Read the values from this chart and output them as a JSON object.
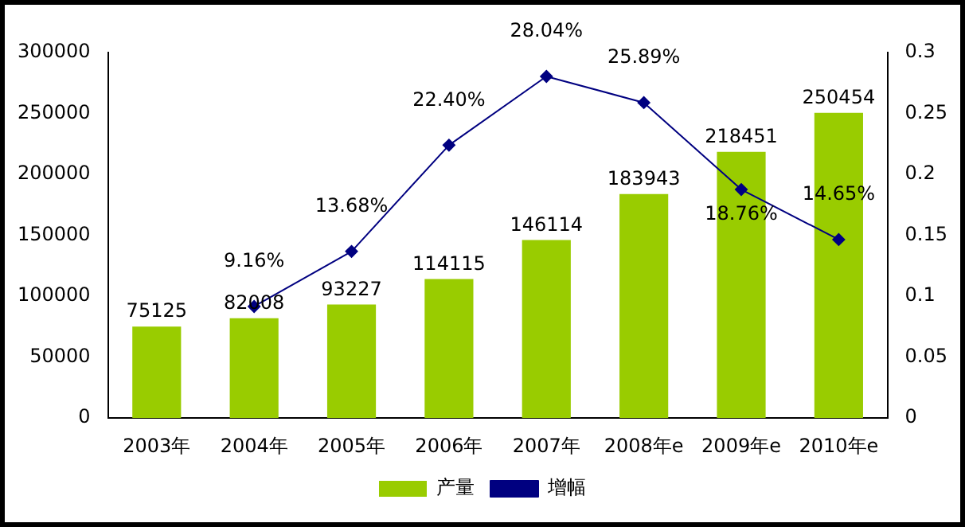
{
  "chart_data": {
    "type": "bar",
    "categories": [
      "2003年",
      "2004年",
      "2005年",
      "2006年",
      "2007年",
      "2008年e",
      "2009年e",
      "2010年e"
    ],
    "series": [
      {
        "name": "产量",
        "color": "#99cc00",
        "values": [
          75125,
          82008,
          93227,
          114115,
          146114,
          183943,
          218451,
          250454
        ],
        "value_labels": [
          "75125",
          "82008",
          "93227",
          "114115",
          "146114",
          "183943",
          "218451",
          "250454"
        ]
      },
      {
        "name": "增幅",
        "type": "line",
        "axis": "y2",
        "color": "#000080",
        "values": [
          null,
          0.0916,
          0.1368,
          0.224,
          0.2804,
          0.2589,
          0.1876,
          0.1465
        ],
        "value_labels": [
          null,
          "9.16%",
          "13.68%",
          "22.40%",
          "28.04%",
          "25.89%",
          "18.76%",
          "14.65%"
        ]
      }
    ],
    "ylim": [
      0,
      300000
    ],
    "yticks": [
      0,
      50000,
      100000,
      150000,
      200000,
      250000,
      300000
    ],
    "y2lim": [
      0,
      0.3
    ],
    "y2ticks": [
      0,
      0.05,
      0.1,
      0.15,
      0.2,
      0.25,
      0.3
    ],
    "grid": false,
    "legend": "bottom",
    "marker": "diamond",
    "line_style": "solid"
  }
}
